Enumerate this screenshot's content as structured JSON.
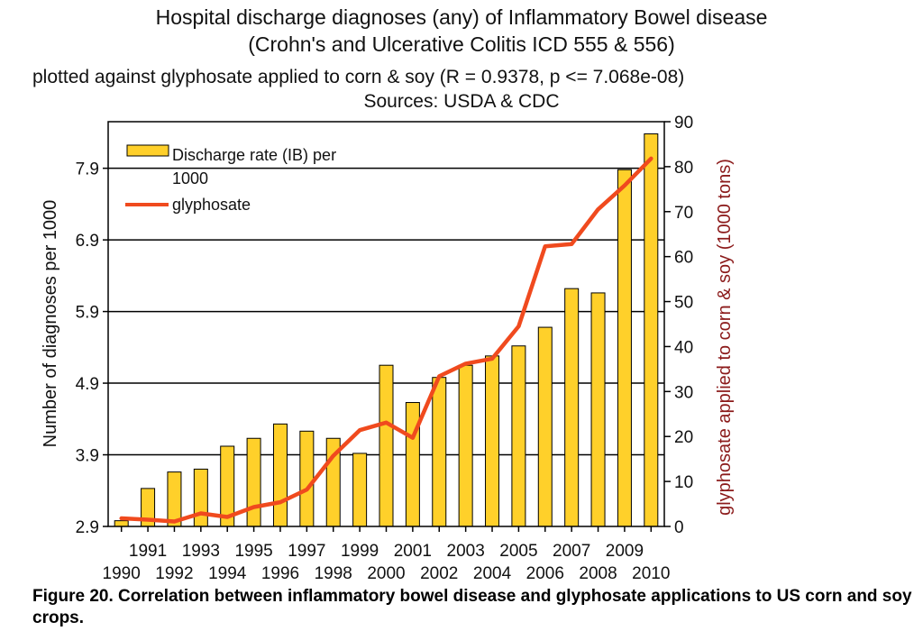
{
  "title": {
    "line1": "Hospital discharge diagnoses (any) of Inflammatory Bowel disease",
    "line2": "(Crohn's and Ulcerative Colitis  ICD 555 & 556)",
    "line3": "plotted against glyphosate applied to corn & soy (R = 0.9378, p <= 7.068e-08)",
    "line4": "Sources: USDA & CDC"
  },
  "caption": "Figure 20. Correlation between inflammatory bowel disease and glyphosate applications to US corn and soy crops.",
  "colors": {
    "bar_fill": "#FFD02A",
    "bar_stroke": "#000000",
    "line": "#F04A1E",
    "right_axis_label": "#8B1A1A"
  },
  "chart_data": {
    "type": "bar",
    "categories": [
      "1990",
      "1991",
      "1992",
      "1993",
      "1994",
      "1995",
      "1996",
      "1997",
      "1998",
      "1999",
      "2000",
      "2001",
      "2002",
      "2003",
      "2004",
      "2005",
      "2006",
      "2007",
      "2008",
      "2009",
      "2010"
    ],
    "ylabel": "Number of diagnoses per 1000",
    "y2label": "glyphosate applied to corn & soy (1000 tons)",
    "ylim": [
      2.9,
      8.55
    ],
    "y2lim": [
      0,
      90
    ],
    "yticks": [
      "2.9",
      "3.9",
      "4.9",
      "5.9",
      "6.9",
      "7.9"
    ],
    "y2ticks": [
      "0",
      "10",
      "20",
      "30",
      "40",
      "50",
      "60",
      "70",
      "80",
      "90"
    ],
    "grid": "horizontal at left-axis ticks",
    "legend_position": "top-left",
    "series": [
      {
        "name": "Discharge rate (IB) per 1000",
        "legend_line1": "Discharge rate (IB) per",
        "legend_line2": "1000",
        "type": "bar",
        "axis": "left",
        "values": [
          2.98,
          3.43,
          3.66,
          3.7,
          4.02,
          4.13,
          4.33,
          4.23,
          4.13,
          3.92,
          5.15,
          4.63,
          4.98,
          5.15,
          5.28,
          5.42,
          5.68,
          6.22,
          6.16,
          7.88,
          8.38
        ]
      },
      {
        "name": "glyphosate",
        "type": "line",
        "axis": "right",
        "values": [
          1.8,
          1.5,
          1.1,
          2.9,
          2.1,
          4.3,
          5.4,
          8.2,
          15.7,
          21.4,
          23.1,
          19.7,
          33.4,
          36.2,
          37.3,
          44.5,
          62.3,
          62.8,
          70.5,
          75.8,
          81.8
        ]
      }
    ]
  }
}
